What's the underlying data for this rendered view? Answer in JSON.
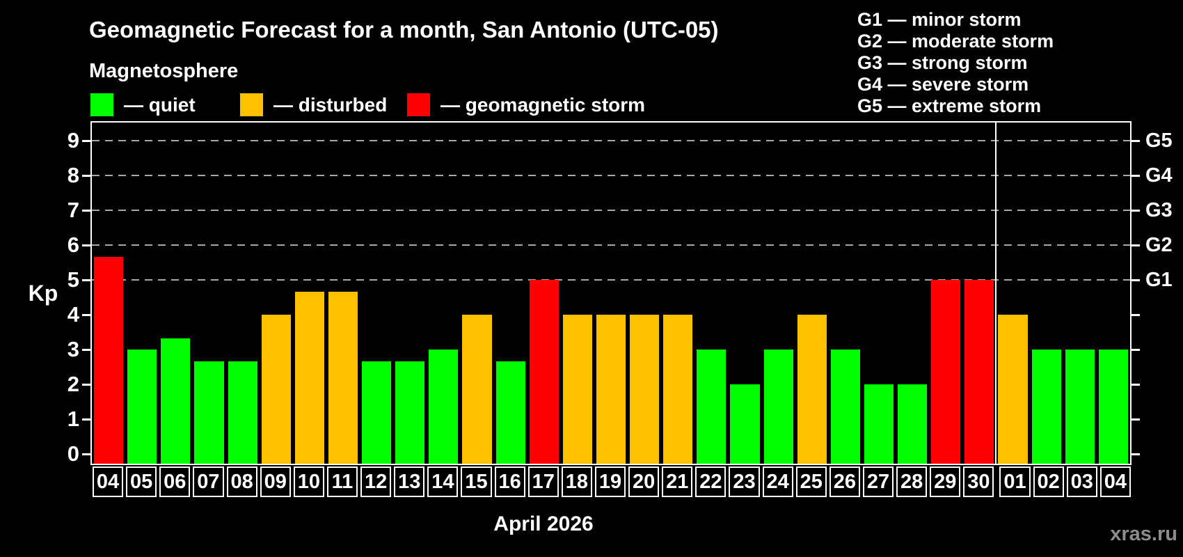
{
  "title": "Geomagnetic Forecast for a month, San Antonio (UTC-05)",
  "subtitle": "Magnetosphere",
  "legend": {
    "items": [
      {
        "key": "quiet",
        "label": "— quiet",
        "color": "#00ff00"
      },
      {
        "key": "disturbed",
        "label": "— disturbed",
        "color": "#ffc000"
      },
      {
        "key": "storm",
        "label": "— geomagnetic storm",
        "color": "#ff0000"
      }
    ]
  },
  "g_scale_legend": {
    "lines": [
      "G1 — minor storm",
      "G2 — moderate storm",
      "G3 — strong storm",
      "G4 — severe storm",
      "G5 — extreme storm"
    ]
  },
  "axis": {
    "y_label": "Kp",
    "x_title": "April 2026"
  },
  "watermark": "xras.ru",
  "chart_data": {
    "type": "bar",
    "title": "Geomagnetic Forecast for a month, San Antonio (UTC-05)",
    "xlabel": "April 2026",
    "ylabel": "Kp",
    "ylim": [
      0,
      9.56
    ],
    "grid": "dashed horizontal at Kp 5-9",
    "legend_position": "top-left",
    "categories": [
      "04",
      "05",
      "06",
      "07",
      "08",
      "09",
      "10",
      "11",
      "12",
      "13",
      "14",
      "15",
      "16",
      "17",
      "18",
      "19",
      "20",
      "21",
      "22",
      "23",
      "24",
      "25",
      "26",
      "27",
      "28",
      "29",
      "30",
      "01",
      "02",
      "03",
      "04"
    ],
    "values": [
      5.67,
      3,
      3.33,
      2.67,
      2.67,
      4,
      4.67,
      4.67,
      2.67,
      2.67,
      3,
      4,
      2.67,
      5,
      4,
      4,
      4,
      4,
      3,
      2,
      3,
      4,
      3,
      2,
      2,
      5,
      5,
      4,
      3,
      3,
      3
    ],
    "statuses": [
      "storm",
      "quiet",
      "quiet",
      "quiet",
      "quiet",
      "disturbed",
      "disturbed",
      "disturbed",
      "quiet",
      "quiet",
      "quiet",
      "disturbed",
      "quiet",
      "storm",
      "disturbed",
      "disturbed",
      "disturbed",
      "disturbed",
      "quiet",
      "quiet",
      "quiet",
      "disturbed",
      "quiet",
      "quiet",
      "quiet",
      "storm",
      "storm",
      "disturbed",
      "quiet",
      "quiet",
      "quiet"
    ],
    "status_colors": {
      "quiet": "#00ff00",
      "disturbed": "#ffc000",
      "storm": "#ff0000"
    },
    "y_ticks": [
      0,
      1,
      2,
      3,
      4,
      5,
      6,
      7,
      8,
      9
    ],
    "grid_kp": [
      5,
      6,
      7,
      8,
      9
    ],
    "right_axis_labels": [
      {
        "label": "G1",
        "kp": 5
      },
      {
        "label": "G2",
        "kp": 6
      },
      {
        "label": "G3",
        "kp": 7
      },
      {
        "label": "G4",
        "kp": 8
      },
      {
        "label": "G5",
        "kp": 9
      }
    ],
    "month_separator_after_index": 26,
    "month_of_first_27_bars": "April 2026"
  }
}
